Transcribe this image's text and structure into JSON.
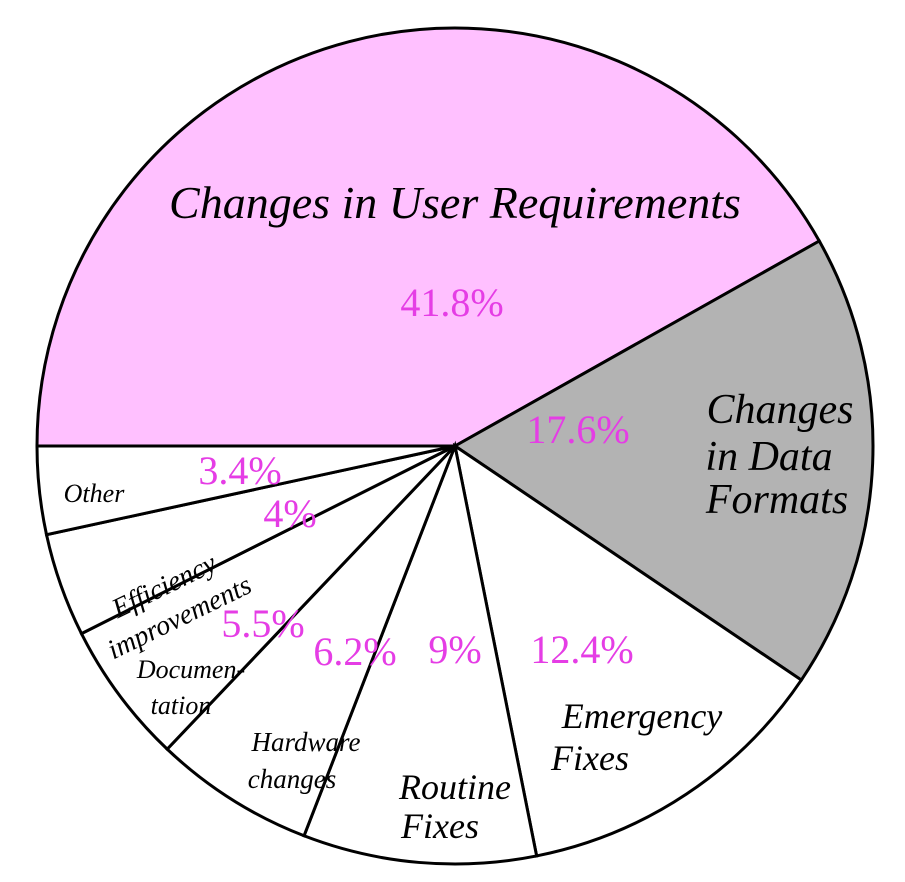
{
  "chart_data": {
    "type": "pie",
    "title": "",
    "slices": [
      {
        "label": "Changes in User Requirements",
        "label_lines": [
          "Changes in User Requirements"
        ],
        "value": 41.8,
        "value_label": "41.8%",
        "color": "#ffc0ff"
      },
      {
        "label": "Changes in Data Formats",
        "label_lines": [
          "Changes",
          "in Data",
          "Formats"
        ],
        "value": 17.6,
        "value_label": "17.6%",
        "color": "#b3b3b3"
      },
      {
        "label": "Emergency Fixes",
        "label_lines": [
          "Emergency",
          "Fixes"
        ],
        "value": 12.4,
        "value_label": "12.4%",
        "color": "#ffffff"
      },
      {
        "label": "Routine Fixes",
        "label_lines": [
          "Routine",
          "Fixes"
        ],
        "value": 9,
        "value_label": "9%",
        "color": "#ffffff"
      },
      {
        "label": "Hardware changes",
        "label_lines": [
          "Hardware",
          "changes"
        ],
        "value": 6.2,
        "value_label": "6.2%",
        "color": "#ffffff"
      },
      {
        "label": "Documen- tation",
        "label_lines": [
          "Documen-",
          "tation"
        ],
        "value": 5.5,
        "value_label": "5.5%",
        "color": "#ffffff"
      },
      {
        "label": "Efficiency improvements",
        "label_lines": [
          "Efficiency",
          "improvements"
        ],
        "value": 4,
        "value_label": "4%",
        "color": "#ffffff"
      },
      {
        "label": "Other",
        "label_lines": [
          "Other"
        ],
        "value": 3.4,
        "value_label": "3.4%",
        "color": "#ffffff"
      }
    ]
  }
}
